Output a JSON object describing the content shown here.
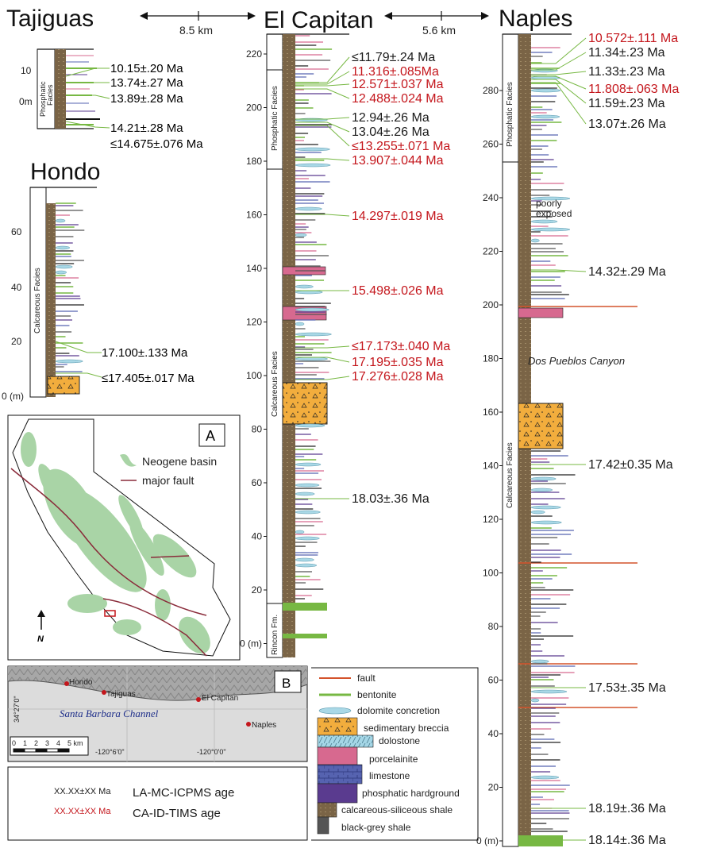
{
  "colors": {
    "la": "#1a1a1a",
    "tims": "#c4161c",
    "fault": "#d4532b",
    "bentonite": "#77b843",
    "dolomite": "#a9d8e6",
    "breccia": "#f2ad3d",
    "dolostone": "#a4d6e6",
    "porcelainite": "#d7698f",
    "limestone": "#5663b0",
    "phosphatic": "#5a3b8f",
    "calc_shale": "#7a6446",
    "black_shale": "#555555",
    "basin": "#a9d4a6",
    "major_fault": "#8a2b3a"
  },
  "titles": {
    "tajiguas": "Tajiguas",
    "el_capitan": "El Capitan",
    "naples": "Naples",
    "hondo": "Hondo"
  },
  "distances": {
    "d1": "8.5 km",
    "d2": "5.6 km"
  },
  "tajiguas": {
    "ticks": [
      "10",
      "0m"
    ],
    "facies": [
      "Phosphatic",
      "Facies"
    ],
    "ages": [
      {
        "text": "10.15±.20 Ma",
        "kind": "la"
      },
      {
        "text": "13.74±.27 Ma",
        "kind": "la"
      },
      {
        "text": "13.89±.28 Ma",
        "kind": "la"
      },
      {
        "text": "14.21±.28 Ma",
        "kind": "la"
      },
      {
        "text": "≤14.675±.076 Ma",
        "kind": "tims"
      }
    ]
  },
  "hondo": {
    "ticks": [
      "60",
      "40",
      "20",
      "0 (m)"
    ],
    "facies": "Calcareous Facies",
    "ages": [
      {
        "text": "17.100±.133 Ma",
        "kind": "tims"
      },
      {
        "text": "≤17.405±.017 Ma",
        "kind": "tims"
      }
    ]
  },
  "el_capitan": {
    "ticks": [
      "220",
      "200",
      "180",
      "160",
      "140",
      "120",
      "100",
      "80",
      "60",
      "40",
      "20",
      "0 (m)"
    ],
    "facies": [
      "Phosphatic Facies",
      "Calcareous Facies",
      "Rincon Fm."
    ],
    "ages": [
      {
        "text": "≤11.79±.24 Ma",
        "kind": "la"
      },
      {
        "text": "11.316±.085Ma",
        "kind": "tims"
      },
      {
        "text": "12.571±.037 Ma",
        "kind": "tims"
      },
      {
        "text": "12.488±.024 Ma",
        "kind": "tims"
      },
      {
        "text": "12.94±.26 Ma",
        "kind": "la"
      },
      {
        "text": "13.04±.26 Ma",
        "kind": "la"
      },
      {
        "text": "≤13.255±.071 Ma",
        "kind": "tims"
      },
      {
        "text": "13.907±.044 Ma",
        "kind": "tims"
      },
      {
        "text": "14.297±.019 Ma",
        "kind": "tims"
      },
      {
        "text": "15.498±.026 Ma",
        "kind": "tims"
      },
      {
        "text": "≤17.173±.040 Ma",
        "kind": "tims"
      },
      {
        "text": "17.195±.035 Ma",
        "kind": "tims"
      },
      {
        "text": "17.276±.028 Ma",
        "kind": "tims"
      },
      {
        "text": "18.03±.36 Ma",
        "kind": "la"
      }
    ]
  },
  "naples": {
    "ticks": [
      "280",
      "260",
      "240",
      "220",
      "200",
      "180",
      "160",
      "140",
      "120",
      "100",
      "80",
      "60",
      "40",
      "20",
      "0 (m)"
    ],
    "facies": [
      "Phosphatic Facies",
      "Calcareous Facies"
    ],
    "notes": [
      "poorly",
      "exposed",
      "Dos Pueblos Canyon"
    ],
    "ages": [
      {
        "text": "10.572±.111 Ma",
        "kind": "tims"
      },
      {
        "text": "11.34±.23 Ma",
        "kind": "la"
      },
      {
        "text": "11.33±.23 Ma",
        "kind": "la"
      },
      {
        "text": "11.808±.063 Ma",
        "kind": "tims"
      },
      {
        "text": "11.59±.23 Ma",
        "kind": "la"
      },
      {
        "text": "13.07±.26 Ma",
        "kind": "la"
      },
      {
        "text": "14.32±.29 Ma",
        "kind": "la"
      },
      {
        "text": "17.42±0.35 Ma",
        "kind": "la"
      },
      {
        "text": "17.53±.35 Ma",
        "kind": "la"
      },
      {
        "text": "18.19±.36 Ma",
        "kind": "la"
      },
      {
        "text": "18.14±.36 Ma",
        "kind": "la"
      }
    ]
  },
  "map_a": {
    "label": "A",
    "legend": [
      "Neogene basin",
      "major fault"
    ],
    "north": "N"
  },
  "map_b": {
    "label": "B",
    "places": [
      "Hondo",
      "Tajiguas",
      "El Capitan",
      "Naples"
    ],
    "water": "Santa Barbara Channel",
    "lat": "34°27'0\"",
    "lon1": "-120°6'0\"",
    "lon2": "-120°0'0\"",
    "scale_ticks": [
      "0",
      "1",
      "2",
      "3",
      "4",
      "5 km"
    ]
  },
  "age_key": {
    "la_sample": "XX.XX±XX Ma",
    "la_label": "LA-MC-ICPMS age",
    "tims_sample": "XX.XX±XX Ma",
    "tims_label": "CA-ID-TIMS age"
  },
  "legend": [
    "fault",
    "bentonite",
    "dolomite concretion",
    "sedimentary breccia",
    "dolostone",
    "porcelainite",
    "limestone",
    "phosphatic hardground",
    "calcareous-siliceous shale",
    "black-grey shale"
  ]
}
